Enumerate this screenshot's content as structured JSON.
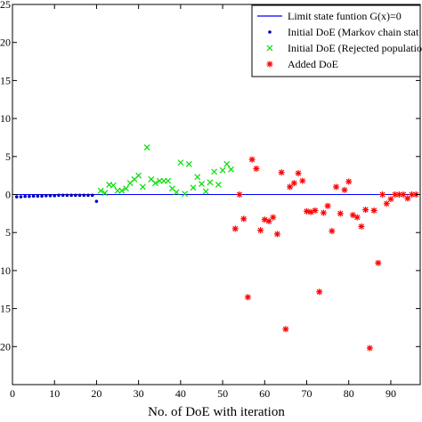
{
  "chart_data": {
    "type": "scatter",
    "title": "",
    "xlabel": "No. of DoE with iteration",
    "ylabel": "",
    "xlim": [
      0,
      97
    ],
    "ylim": [
      -25,
      25
    ],
    "xticks": [
      0,
      10,
      20,
      30,
      40,
      50,
      60,
      70,
      80,
      90
    ],
    "xtick_labels": [
      "0",
      "10",
      "20",
      "30",
      "40",
      "50",
      "60",
      "70",
      "80",
      "90"
    ],
    "yticks": [
      25,
      20,
      15,
      10,
      5,
      0,
      -5,
      -10,
      -15,
      -20
    ],
    "ytick_labels": [
      "25",
      "20",
      "15",
      "10",
      "5",
      "0",
      "5",
      "10",
      "15",
      "20"
    ],
    "grid": false,
    "legend_position": "top-right",
    "limit_line": {
      "name": "Limit state funtion G(x)=0",
      "color": "#0000ff",
      "y": 0,
      "x": [
        0,
        97
      ]
    },
    "series": [
      {
        "name": "Initial DoE (Markov chain stat",
        "marker": "dot",
        "color": "#0000b4",
        "x": [
          1,
          2,
          3,
          4,
          5,
          6,
          7,
          8,
          9,
          10,
          11,
          12,
          13,
          14,
          15,
          16,
          17,
          18,
          19,
          20
        ],
        "y": [
          -0.3,
          -0.3,
          -0.25,
          -0.25,
          -0.2,
          -0.2,
          -0.2,
          -0.15,
          -0.15,
          -0.15,
          -0.1,
          -0.1,
          -0.1,
          -0.1,
          -0.1,
          -0.1,
          -0.1,
          -0.1,
          -0.1,
          -0.9
        ]
      },
      {
        "name": "Initial DoE (Rejected populatio",
        "marker": "x",
        "color": "#00dd00",
        "x": [
          21,
          22,
          23,
          24,
          25,
          26,
          27,
          28,
          29,
          30,
          31,
          32,
          33,
          34,
          35,
          36,
          37,
          38,
          39,
          40,
          41,
          42,
          43,
          44,
          45,
          46,
          47,
          48,
          49,
          50,
          51,
          52
        ],
        "y": [
          0.5,
          0.2,
          1.3,
          1.2,
          0.5,
          0.5,
          0.8,
          1.5,
          2.0,
          2.5,
          1.0,
          6.2,
          2.0,
          1.5,
          1.8,
          1.8,
          1.8,
          0.8,
          0.3,
          4.2,
          0.1,
          4.0,
          0.9,
          2.3,
          1.4,
          0.4,
          1.6,
          3.0,
          1.3,
          3.2,
          4.0,
          3.3
        ]
      },
      {
        "name": "Added DoE",
        "marker": "asterisk",
        "color": "#ff0000",
        "x": [
          53,
          54,
          55,
          56,
          57,
          58,
          59,
          60,
          61,
          62,
          63,
          64,
          65,
          66,
          67,
          68,
          69,
          70,
          71,
          72,
          73,
          74,
          75,
          76,
          77,
          78,
          79,
          80,
          81,
          82,
          83,
          84,
          85,
          86,
          87,
          88,
          89,
          90,
          91,
          92,
          93,
          94,
          95,
          96
        ],
        "y": [
          -4.5,
          0.0,
          -3.2,
          -13.5,
          4.6,
          3.4,
          -4.7,
          -3.3,
          -3.5,
          -3.0,
          -5.2,
          2.9,
          -17.7,
          1.0,
          1.5,
          2.8,
          1.8,
          -2.2,
          -2.3,
          -2.1,
          -12.8,
          -2.4,
          -1.5,
          -4.8,
          1.0,
          -2.5,
          0.6,
          1.7,
          -2.7,
          -3.0,
          -4.2,
          -2.0,
          -20.2,
          -2.1,
          -9.0,
          0.0,
          -1.2,
          -0.6,
          0.0,
          0.0,
          0.0,
          -0.5,
          0.0,
          0.0
        ]
      }
    ]
  }
}
